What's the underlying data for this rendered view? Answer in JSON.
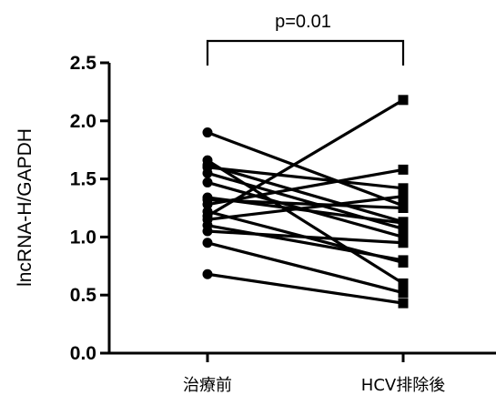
{
  "chart_data": {
    "type": "line",
    "ylabel": "lncRNA-H/GAPDH",
    "categories": [
      "治療前",
      "HCV排除後"
    ],
    "ylim": [
      0,
      2.5
    ],
    "yticks": [
      "0.0",
      "0.5",
      "1.0",
      "1.5",
      "2.0",
      "2.5"
    ],
    "annotation": "p=0.01",
    "colors": {
      "line": "#000000",
      "marker": "#000000"
    },
    "marker_before": "circle",
    "marker_after": "square",
    "pairs": [
      {
        "before": 1.9,
        "after": 1.27
      },
      {
        "before": 1.66,
        "after": 0.6
      },
      {
        "before": 1.62,
        "after": 1.13
      },
      {
        "before": 1.6,
        "after": 1.42
      },
      {
        "before": 1.55,
        "after": 1.07
      },
      {
        "before": 1.47,
        "after": 1.0
      },
      {
        "before": 1.34,
        "after": 1.12
      },
      {
        "before": 1.32,
        "after": 1.25
      },
      {
        "before": 1.28,
        "after": 1.58
      },
      {
        "before": 1.22,
        "after": 0.78
      },
      {
        "before": 1.18,
        "after": 2.18
      },
      {
        "before": 1.15,
        "after": 1.35
      },
      {
        "before": 1.1,
        "after": 0.8
      },
      {
        "before": 1.05,
        "after": 0.95
      },
      {
        "before": 0.95,
        "after": 0.52
      },
      {
        "before": 0.68,
        "after": 0.43
      }
    ]
  }
}
